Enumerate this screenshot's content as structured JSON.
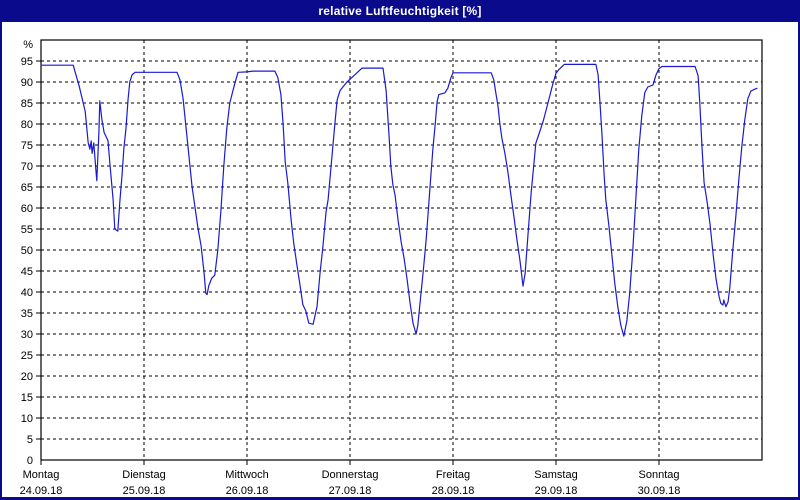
{
  "window": {
    "title": "relative Luftfeuchtigkeit [%]"
  },
  "colors": {
    "titlebar_bg": "#0a0a8c",
    "titlebar_text": "#ffffff",
    "window_border": "#0a0a8c",
    "plot_bg": "#ffffff",
    "frame": "#000000",
    "grid": "#000000",
    "line": "#1a1ad2",
    "text": "#000000"
  },
  "chart_data": {
    "type": "line",
    "title": "relative Luftfeuchtigkeit [%]",
    "grid": "dashed",
    "legend": "none",
    "y_axis": {
      "label": "%",
      "min": 0,
      "max": 100,
      "tick_step": 5,
      "tick_max": 95
    },
    "x_axis": {
      "unit": "hours_since_monday_00",
      "hours_total": 168,
      "days": [
        {
          "name": "Montag",
          "date": "24.09.18"
        },
        {
          "name": "Dienstag",
          "date": "25.09.18"
        },
        {
          "name": "Mittwoch",
          "date": "26.09.18"
        },
        {
          "name": "Donnerstag",
          "date": "27.09.18"
        },
        {
          "name": "Freitag",
          "date": "28.09.18"
        },
        {
          "name": "Samstag",
          "date": "29.09.18"
        },
        {
          "name": "Sonntag",
          "date": "30.09.18"
        }
      ]
    },
    "series": [
      {
        "name": "relative Luftfeuchtigkeit",
        "color": "#1a1ad2",
        "points": [
          [
            0,
            94
          ],
          [
            7.5,
            94
          ],
          [
            8.9,
            89
          ],
          [
            10.3,
            83
          ],
          [
            11,
            75.5
          ],
          [
            11.4,
            74
          ],
          [
            11.7,
            76
          ],
          [
            11.9,
            73
          ],
          [
            12.3,
            75.5
          ],
          [
            12.8,
            69
          ],
          [
            13,
            66.5
          ],
          [
            13.5,
            78
          ],
          [
            13.7,
            85.5
          ],
          [
            14.2,
            81
          ],
          [
            14.7,
            78
          ],
          [
            15.6,
            76
          ],
          [
            16.1,
            70
          ],
          [
            16.8,
            62
          ],
          [
            17.2,
            55
          ],
          [
            17.9,
            54.5
          ],
          [
            18.4,
            62
          ],
          [
            18.9,
            68
          ],
          [
            19.3,
            74
          ],
          [
            19.8,
            79
          ],
          [
            20.3,
            86
          ],
          [
            20.7,
            90
          ],
          [
            21.2,
            91.7
          ],
          [
            21.9,
            92.3
          ],
          [
            24,
            92.3
          ],
          [
            31.7,
            92.3
          ],
          [
            32.4,
            90.5
          ],
          [
            33.1,
            86
          ],
          [
            33.8,
            79
          ],
          [
            34.5,
            72
          ],
          [
            35.2,
            65
          ],
          [
            35.9,
            60
          ],
          [
            36.6,
            55
          ],
          [
            37.3,
            51
          ],
          [
            38,
            44.5
          ],
          [
            38.4,
            39.7
          ],
          [
            38.7,
            39.4
          ],
          [
            39.1,
            41.5
          ],
          [
            39.8,
            43.3
          ],
          [
            40.5,
            44
          ],
          [
            41.2,
            50
          ],
          [
            41.9,
            59
          ],
          [
            42.6,
            70
          ],
          [
            43.3,
            79
          ],
          [
            44,
            85
          ],
          [
            45,
            89
          ],
          [
            45.9,
            92.3
          ],
          [
            48,
            92.4
          ],
          [
            49.4,
            92.6
          ],
          [
            54.5,
            92.6
          ],
          [
            55.2,
            91
          ],
          [
            55.9,
            87
          ],
          [
            56.4,
            80
          ],
          [
            56.9,
            71
          ],
          [
            57.5,
            66
          ],
          [
            58.3,
            57
          ],
          [
            58.9,
            51.5
          ],
          [
            59.7,
            46
          ],
          [
            60.3,
            42
          ],
          [
            61,
            37
          ],
          [
            61.7,
            35.5
          ],
          [
            62.4,
            32.6
          ],
          [
            63.4,
            32.3
          ],
          [
            64.3,
            36.5
          ],
          [
            65,
            44.4
          ],
          [
            65.7,
            51
          ],
          [
            66.4,
            59
          ],
          [
            66.9,
            62
          ],
          [
            67.6,
            70
          ],
          [
            68.3,
            78
          ],
          [
            69,
            85.7
          ],
          [
            69.7,
            88
          ],
          [
            71.3,
            90
          ],
          [
            72.9,
            91.5
          ],
          [
            74.8,
            93.3
          ],
          [
            79.7,
            93.3
          ],
          [
            80.4,
            88
          ],
          [
            81.1,
            77
          ],
          [
            81.5,
            70
          ],
          [
            82,
            65.5
          ],
          [
            82.5,
            63
          ],
          [
            83.2,
            57
          ],
          [
            83.9,
            52
          ],
          [
            84.6,
            48
          ],
          [
            85.3,
            43
          ],
          [
            86,
            37.3
          ],
          [
            86.7,
            32.5
          ],
          [
            87.4,
            30
          ],
          [
            87.8,
            32
          ],
          [
            88.3,
            37.3
          ],
          [
            89,
            44.4
          ],
          [
            89.7,
            52
          ],
          [
            90.2,
            58.7
          ],
          [
            90.6,
            64.3
          ],
          [
            91.3,
            73.8
          ],
          [
            91.8,
            79.4
          ],
          [
            92.3,
            85.3
          ],
          [
            92.7,
            87
          ],
          [
            94.1,
            87.4
          ],
          [
            94.8,
            88.5
          ],
          [
            95.5,
            91
          ],
          [
            96,
            92.2
          ],
          [
            104.9,
            92.2
          ],
          [
            105.5,
            90.5
          ],
          [
            106,
            87.3
          ],
          [
            106.5,
            84.1
          ],
          [
            106.9,
            80.2
          ],
          [
            107.4,
            76.6
          ],
          [
            108.1,
            73
          ],
          [
            108.8,
            68.6
          ],
          [
            109.5,
            63.1
          ],
          [
            110.2,
            58
          ],
          [
            110.9,
            52.5
          ],
          [
            111.6,
            47.6
          ],
          [
            112.3,
            41.4
          ],
          [
            112.8,
            44.4
          ],
          [
            113.5,
            54
          ],
          [
            114.2,
            63.5
          ],
          [
            114.9,
            71
          ],
          [
            115.3,
            75.4
          ],
          [
            116,
            77.5
          ],
          [
            117,
            80.6
          ],
          [
            117.7,
            83.3
          ],
          [
            118.6,
            86.9
          ],
          [
            119.3,
            89.7
          ],
          [
            120,
            92.1
          ],
          [
            120.7,
            93
          ],
          [
            121.9,
            94.2
          ],
          [
            129.3,
            94.2
          ],
          [
            129.8,
            91.7
          ],
          [
            130.2,
            85.7
          ],
          [
            130.7,
            77.8
          ],
          [
            131.2,
            68
          ],
          [
            131.6,
            62
          ],
          [
            132.3,
            56
          ],
          [
            133,
            49
          ],
          [
            133.7,
            42
          ],
          [
            134.4,
            36.5
          ],
          [
            135.1,
            32.1
          ],
          [
            135.8,
            29.5
          ],
          [
            136.5,
            33
          ],
          [
            137.2,
            40
          ],
          [
            137.9,
            50
          ],
          [
            138.6,
            62
          ],
          [
            139.3,
            74
          ],
          [
            140,
            82
          ],
          [
            140.7,
            87.5
          ],
          [
            141.4,
            88.8
          ],
          [
            142.6,
            89.3
          ],
          [
            143.3,
            91.7
          ],
          [
            144,
            93.2
          ],
          [
            144.7,
            93.7
          ],
          [
            152.4,
            93.7
          ],
          [
            153.1,
            91.5
          ],
          [
            153.5,
            85
          ],
          [
            154,
            75
          ],
          [
            154.5,
            66
          ],
          [
            155.2,
            61.5
          ],
          [
            155.9,
            56
          ],
          [
            156.6,
            49
          ],
          [
            157.3,
            43
          ],
          [
            158,
            38.9
          ],
          [
            158.4,
            37.3
          ],
          [
            158.9,
            36.9
          ],
          [
            159.1,
            38.1
          ],
          [
            159.6,
            36.5
          ],
          [
            160.1,
            37.7
          ],
          [
            160.5,
            41
          ],
          [
            161.2,
            50
          ],
          [
            161.9,
            57.9
          ],
          [
            162.6,
            66.7
          ],
          [
            163.3,
            74.6
          ],
          [
            164,
            81
          ],
          [
            164.7,
            86
          ],
          [
            165.4,
            87.8
          ],
          [
            166.1,
            88.2
          ],
          [
            166.8,
            88.5
          ]
        ]
      }
    ]
  }
}
